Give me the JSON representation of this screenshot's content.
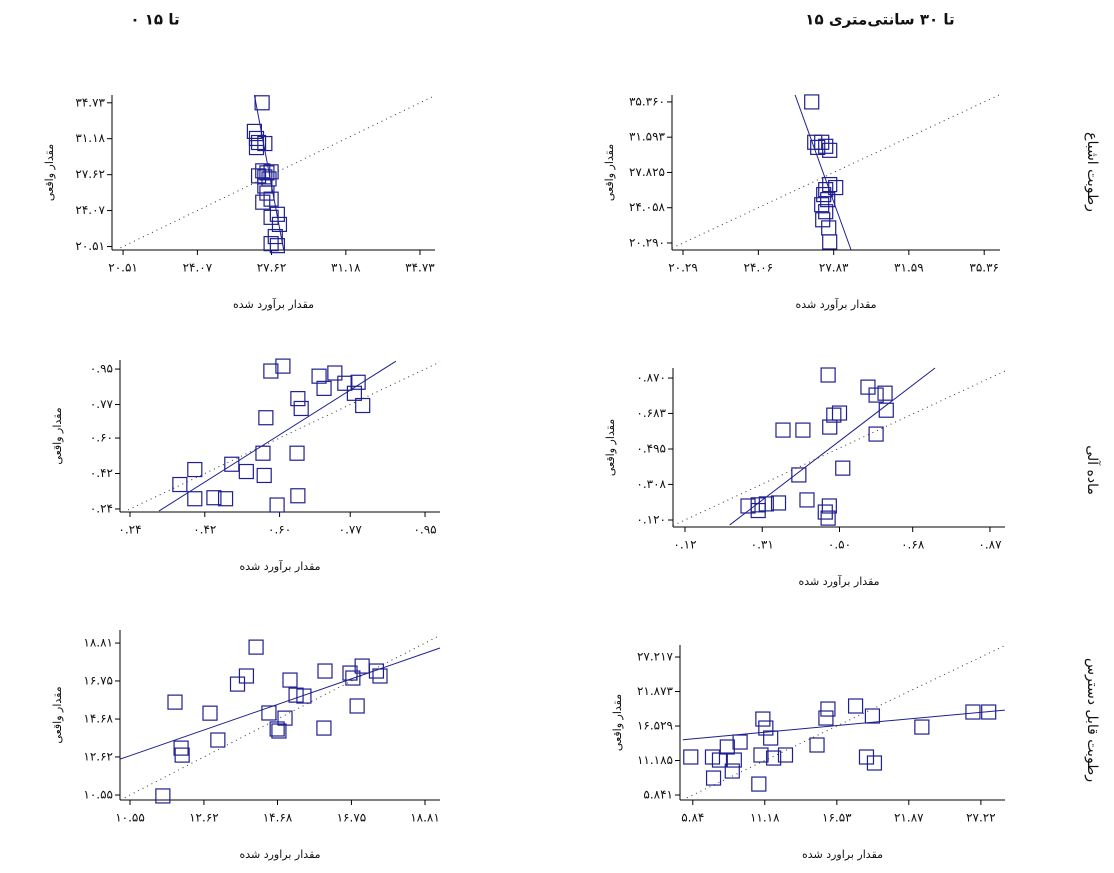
{
  "column_titles": [
    "۰ تا ۱۵",
    "۱۵ تا ۳۰ سانتی‌متری"
  ],
  "row_titles": [
    "رطوبت اشباع",
    "ماده آلی",
    "رطوبت قابل دسترس"
  ],
  "chart_data": [
    {
      "type": "scatter",
      "x_label": "مقدار برآورد شده",
      "y_label": "مقدار واقعی",
      "color": "#1f1f8f",
      "identity_line": true,
      "xlim": [
        19.98,
        35.45
      ],
      "ylim": [
        20.17,
        35.5
      ],
      "xticks": [
        {
          "value": 20.51,
          "label": "۲۰.۵۱"
        },
        {
          "value": 24.07,
          "label": "۲۴.۰۷"
        },
        {
          "value": 27.62,
          "label": "۲۷.۶۲"
        },
        {
          "value": 31.18,
          "label": "۳۱.۱۸"
        },
        {
          "value": 34.73,
          "label": "۳۴.۷۳"
        }
      ],
      "yticks": [
        {
          "value": 20.51,
          "label": "۲۰.۵۱"
        },
        {
          "value": 24.07,
          "label": "۲۴.۰۷"
        },
        {
          "value": 27.62,
          "label": "۲۷.۶۲"
        },
        {
          "value": 31.18,
          "label": "۳۱.۱۸"
        },
        {
          "value": 34.73,
          "label": "۳۴.۷۳"
        }
      ],
      "x": [
        27.17,
        26.8,
        26.9,
        27.0,
        27.3,
        26.9,
        27.2,
        27.4,
        27.6,
        27.0,
        27.3,
        27.5,
        27.3,
        27.4,
        27.6,
        27.2,
        27.9,
        27.6,
        28.0,
        27.8,
        27.6,
        27.9
      ],
      "y": [
        34.73,
        31.9,
        31.2,
        30.8,
        30.7,
        30.3,
        28.0,
        27.8,
        27.9,
        27.5,
        27.4,
        27.2,
        26.5,
        25.8,
        25.2,
        24.9,
        23.7,
        23.4,
        22.7,
        21.5,
        20.8,
        20.6
      ],
      "fit_line": {
        "x": [
          26.8,
          28.2
        ],
        "y": [
          35.5,
          20.2
        ]
      }
    },
    {
      "type": "scatter",
      "x_label": "مقدار برآورد شده",
      "y_label": "مقدار واقعی",
      "color": "#1f1f8f",
      "identity_line": true,
      "xlim": [
        19.74,
        36.15
      ],
      "ylim": [
        19.54,
        36.1
      ],
      "xticks": [
        {
          "value": 20.29,
          "label": "۲۰.۲۹"
        },
        {
          "value": 24.06,
          "label": "۲۴.۰۶"
        },
        {
          "value": 27.83,
          "label": "۲۷.۸۳"
        },
        {
          "value": 31.59,
          "label": "۳۱.۵۹"
        },
        {
          "value": 35.36,
          "label": "۳۵.۳۶"
        }
      ],
      "yticks": [
        {
          "value": 20.29,
          "label": "۲۰.۲۹۰"
        },
        {
          "value": 24.058,
          "label": "۲۴.۰۵۸"
        },
        {
          "value": 27.825,
          "label": "۲۷.۸۲۵"
        },
        {
          "value": 31.593,
          "label": "۳۱.۵۹۳"
        },
        {
          "value": 35.36,
          "label": "۳۵.۳۶۰"
        }
      ],
      "x": [
        26.73,
        26.88,
        27.23,
        27.43,
        27.63,
        27.03,
        27.63,
        27.43,
        27.93,
        27.33,
        27.53,
        27.23,
        27.43,
        27.28,
        27.58,
        27.63
      ],
      "y": [
        35.36,
        31.05,
        31.05,
        30.62,
        30.19,
        30.5,
        26.53,
        25.99,
        26.21,
        25.46,
        24.92,
        24.38,
        23.63,
        22.77,
        21.9,
        20.4
      ],
      "fit_line": {
        "x": [
          25.9,
          28.7
        ],
        "y": [
          36.1,
          19.54
        ]
      }
    },
    {
      "type": "scatter",
      "x_label": "مقدار برآورد شده",
      "y_label": "مقدار واقعی",
      "color": "#1f1f8f",
      "identity_line": true,
      "xlim": [
        0.216,
        0.986
      ],
      "ylim": [
        0.2246,
        0.996
      ],
      "xticks": [
        {
          "value": 0.24,
          "label": "۰.۲۴"
        },
        {
          "value": 0.42,
          "label": "۰.۴۲"
        },
        {
          "value": 0.6,
          "label": "۰.۶۰"
        },
        {
          "value": 0.77,
          "label": "۰.۷۷"
        },
        {
          "value": 0.95,
          "label": "۰.۹۵"
        }
      ],
      "yticks": [
        {
          "value": 0.24,
          "label": "۰.۲۴"
        },
        {
          "value": 0.42,
          "label": "۰.۴۲"
        },
        {
          "value": 0.6,
          "label": "۰.۶۰"
        },
        {
          "value": 0.77,
          "label": "۰.۷۷"
        },
        {
          "value": 0.95,
          "label": "۰.۹۵"
        }
      ],
      "x": [
        0.608,
        0.579,
        0.695,
        0.733,
        0.789,
        0.644,
        0.652,
        0.707,
        0.757,
        0.78,
        0.8,
        0.567,
        0.56,
        0.642,
        0.485,
        0.52,
        0.563,
        0.396,
        0.36,
        0.442,
        0.47,
        0.396,
        0.644,
        0.594
      ],
      "y": [
        0.965,
        0.94,
        0.914,
        0.93,
        0.883,
        0.8,
        0.75,
        0.852,
        0.878,
        0.827,
        0.765,
        0.703,
        0.523,
        0.523,
        0.467,
        0.43,
        0.41,
        0.44,
        0.364,
        0.297,
        0.292,
        0.292,
        0.307,
        0.26
      ],
      "fit_line": {
        "x": [
          0.31,
          0.88
        ],
        "y": [
          0.23,
          0.99
        ]
      }
    },
    {
      "type": "scatter",
      "x_label": "مقدار برآورد شده",
      "y_label": "مقدار واقعی",
      "color": "#1f1f8f",
      "identity_line": true,
      "xlim": [
        0.0905,
        0.907
      ],
      "ylim": [
        0.083,
        0.923
      ],
      "xticks": [
        {
          "value": 0.12,
          "label": "۰.۱۲"
        },
        {
          "value": 0.31,
          "label": "۰.۳۱"
        },
        {
          "value": 0.5,
          "label": "۰.۵۰"
        },
        {
          "value": 0.68,
          "label": "۰.۶۸"
        },
        {
          "value": 0.87,
          "label": "۰.۸۷"
        }
      ],
      "yticks": [
        {
          "value": 0.12,
          "label": "۰.۱۲۰"
        },
        {
          "value": 0.308,
          "label": "۰.۳۰۸"
        },
        {
          "value": 0.495,
          "label": "۰.۴۹۵"
        },
        {
          "value": 0.683,
          "label": "۰.۶۸۳"
        },
        {
          "value": 0.87,
          "label": "۰.۸۷۰"
        }
      ],
      "x": [
        0.472,
        0.57,
        0.612,
        0.59,
        0.615,
        0.59,
        0.5,
        0.486,
        0.476,
        0.361,
        0.41,
        0.508,
        0.4,
        0.275,
        0.3,
        0.32,
        0.35,
        0.42,
        0.475,
        0.465,
        0.472,
        0.3
      ],
      "y": [
        0.886,
        0.822,
        0.79,
        0.78,
        0.7,
        0.574,
        0.685,
        0.674,
        0.611,
        0.595,
        0.595,
        0.394,
        0.358,
        0.194,
        0.2,
        0.205,
        0.21,
        0.226,
        0.194,
        0.162,
        0.13,
        0.17
      ],
      "fit_line": {
        "x": [
          0.23,
          0.735
        ],
        "y": [
          0.094,
          0.923
        ]
      }
    },
    {
      "type": "scatter",
      "x_label": "مقدار براورد شده",
      "y_label": "مقدار واقعی",
      "color": "#1f1f8f",
      "identity_line": true,
      "xlim": [
        10.27,
        19.23
      ],
      "ylim": [
        10.28,
        19.52
      ],
      "xticks": [
        {
          "value": 10.55,
          "label": "۱۰.۵۵"
        },
        {
          "value": 12.62,
          "label": "۱۲.۶۲"
        },
        {
          "value": 14.68,
          "label": "۱۴.۶۸"
        },
        {
          "value": 16.75,
          "label": "۱۶.۷۵"
        },
        {
          "value": 18.81,
          "label": "۱۸.۸۱"
        }
      ],
      "yticks": [
        {
          "value": 10.55,
          "label": "۱۰.۵۵"
        },
        {
          "value": 12.62,
          "label": "۱۲.۶۲"
        },
        {
          "value": 14.68,
          "label": "۱۴.۶۸"
        },
        {
          "value": 16.75,
          "label": "۱۶.۷۵"
        },
        {
          "value": 18.81,
          "label": "۱۸.۸۱"
        }
      ],
      "x": [
        14.08,
        16.01,
        16.71,
        17.05,
        17.45,
        17.55,
        16.79,
        15.42,
        13.81,
        13.56,
        15.03,
        15.2,
        15.98,
        16.91,
        14.44,
        14.89,
        14.67,
        14.72,
        12.79,
        11.81,
        13.01,
        11.98,
        12.01,
        11.47
      ],
      "y": [
        18.59,
        17.29,
        17.18,
        17.56,
        17.29,
        17.02,
        16.91,
        15.93,
        17.02,
        16.58,
        16.8,
        15.98,
        14.19,
        15.39,
        15.01,
        14.73,
        14.14,
        14.03,
        15.0,
        15.6,
        13.54,
        13.1,
        12.72,
        10.5
      ],
      "fit_line": {
        "x": [
          10.27,
          19.23
        ],
        "y": [
          12.5,
          18.54
        ]
      }
    },
    {
      "type": "scatter",
      "x_label": "مقدار براورد شده",
      "y_label": "مقدار واقعی",
      "color": "#1f1f8f",
      "identity_line": true,
      "xlim": [
        4.89,
        29.01
      ],
      "ylim": [
        5.07,
        29.08
      ],
      "xticks": [
        {
          "value": 5.84,
          "label": "۵.۸۴"
        },
        {
          "value": 11.18,
          "label": "۱۱.۱۸"
        },
        {
          "value": 16.53,
          "label": "۱۶.۵۳"
        },
        {
          "value": 21.87,
          "label": "۲۱.۸۷"
        },
        {
          "value": 27.22,
          "label": "۲۷.۲۲"
        }
      ],
      "yticks": [
        {
          "value": 5.841,
          "label": "۵.۸۴۱"
        },
        {
          "value": 11.185,
          "label": "۱۱.۱۸۵"
        },
        {
          "value": 16.529,
          "label": "۱۶.۵۲۹"
        },
        {
          "value": 21.873,
          "label": "۲۱.۸۷۳"
        },
        {
          "value": 27.217,
          "label": "۲۷.۲۱۷"
        }
      ],
      "x": [
        15.87,
        15.72,
        17.92,
        19.17,
        11.04,
        11.26,
        11.62,
        15.06,
        9.35,
        8.4,
        7.3,
        5.69,
        7.82,
        8.92,
        10.9,
        12.72,
        18.73,
        19.32,
        22.84,
        26.63,
        27.8,
        7.38,
        8.77,
        10.74,
        11.84
      ],
      "y": [
        19.16,
        17.77,
        19.63,
        18.08,
        17.61,
        16.22,
        14.67,
        13.59,
        14.05,
        13.28,
        11.73,
        11.73,
        11.26,
        11.26,
        12.04,
        12.04,
        11.73,
        10.8,
        16.37,
        18.7,
        18.7,
        8.47,
        9.56,
        7.54,
        11.57
      ],
      "fit_line": {
        "x": [
          5.1,
          29.0
        ],
        "y": [
          14.4,
          19.0
        ]
      }
    }
  ]
}
